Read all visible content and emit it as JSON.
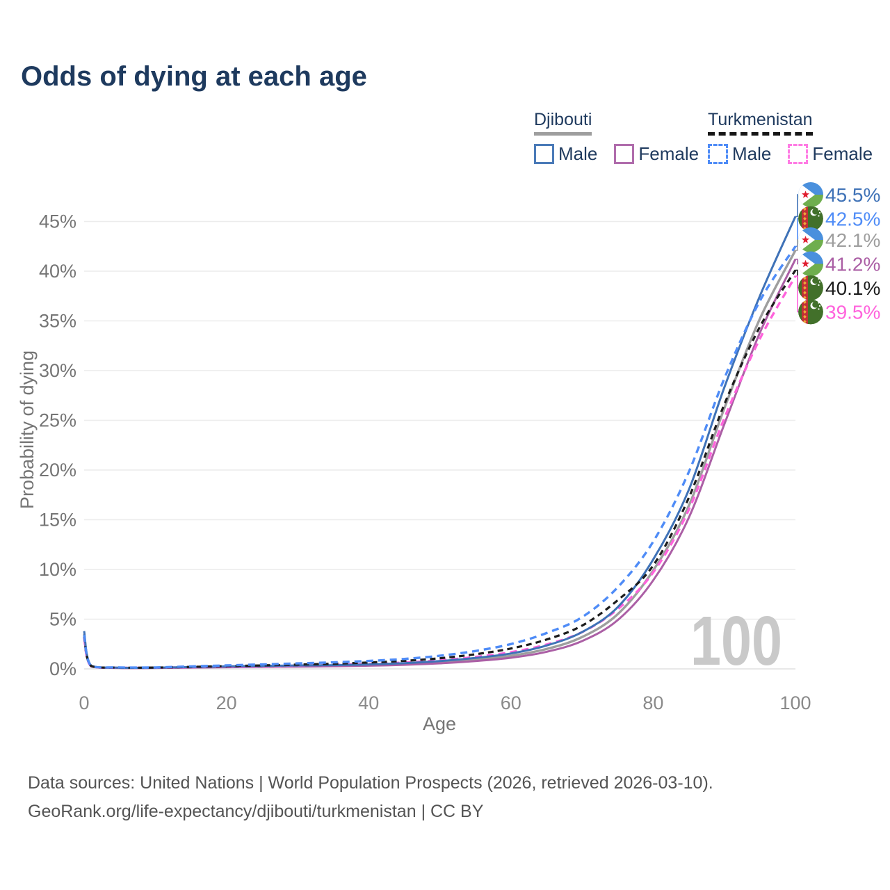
{
  "title": "Odds of dying at each age",
  "watermark_age": "100",
  "legend": {
    "groups": [
      {
        "country": "Djibouti",
        "line_style": "solid",
        "underline_color": "#9e9e9e",
        "items": [
          {
            "label": "Male",
            "color": "#4b7bb8"
          },
          {
            "label": "Female",
            "color": "#b06dac"
          }
        ]
      },
      {
        "country": "Turkmenistan",
        "line_style": "dashed",
        "underline_color": "#161616",
        "items": [
          {
            "label": "Male",
            "color": "#4f8cf7"
          },
          {
            "label": "Female",
            "color": "#ff7ce4"
          }
        ]
      }
    ]
  },
  "footer": {
    "line1": "Data sources: United Nations | World Population Prospects (2026, retrieved 2026-03-10).",
    "line2": "GeoRank.org/life-expectancy/djibouti/turkmenistan | CC BY"
  },
  "chart_data": {
    "type": "line",
    "title": "Odds of dying at each age",
    "xlabel": "Age",
    "ylabel": "Probability of dying",
    "xlim": [
      0,
      100
    ],
    "ylim": [
      0,
      47
    ],
    "grid": true,
    "legend_position": "top-right",
    "x_ticks": [
      0,
      20,
      40,
      60,
      80,
      100
    ],
    "y_ticks_percent": [
      0,
      5,
      10,
      15,
      20,
      25,
      30,
      35,
      40,
      45
    ],
    "ages": [
      0,
      1,
      5,
      10,
      15,
      20,
      25,
      30,
      35,
      40,
      45,
      50,
      55,
      60,
      65,
      70,
      75,
      80,
      85,
      90,
      95,
      100
    ],
    "series": [
      {
        "name": "Djibouti Male",
        "country": "Djibouti",
        "sex": "Male",
        "color": "#3f72b7",
        "dash": "",
        "width": 3,
        "end_value": 45.5,
        "end_label": "45.5%",
        "label_color": "#3f72b7",
        "flag": "djibouti",
        "values": [
          3.8,
          0.32,
          0.12,
          0.12,
          0.18,
          0.25,
          0.3,
          0.34,
          0.38,
          0.45,
          0.57,
          0.78,
          1.1,
          1.55,
          2.35,
          3.7,
          6.2,
          11.0,
          18.0,
          28.3,
          37.5,
          45.5
        ]
      },
      {
        "name": "Turkmenistan Male",
        "country": "Turkmenistan",
        "sex": "Male",
        "color": "#4f8cf7",
        "dash": "10 7",
        "width": 3.4,
        "end_value": 42.5,
        "end_label": "42.5%",
        "label_color": "#4f8cf7",
        "flag": "turkmenistan",
        "values": [
          3.4,
          0.3,
          0.15,
          0.15,
          0.25,
          0.35,
          0.45,
          0.55,
          0.66,
          0.8,
          1.0,
          1.32,
          1.8,
          2.5,
          3.6,
          5.2,
          8.2,
          12.8,
          19.8,
          29.2,
          37.0,
          42.5
        ]
      },
      {
        "name": "Djibouti Both sexes",
        "country": "Djibouti",
        "sex": "Both",
        "color": "#9e9e9e",
        "dash": "",
        "width": 3.4,
        "end_value": 42.1,
        "end_label": "42.1%",
        "label_color": "#9e9e9e",
        "flag": "djibouti",
        "values": [
          3.5,
          0.29,
          0.11,
          0.11,
          0.15,
          0.21,
          0.25,
          0.28,
          0.32,
          0.38,
          0.48,
          0.66,
          0.93,
          1.32,
          2.0,
          3.2,
          5.5,
          9.9,
          16.4,
          26.2,
          35.2,
          42.1
        ]
      },
      {
        "name": "Djibouti Female",
        "country": "Djibouti",
        "sex": "Female",
        "color": "#ab5fa5",
        "dash": "",
        "width": 3,
        "end_value": 41.2,
        "end_label": "41.2%",
        "label_color": "#ab5fa5",
        "flag": "djibouti",
        "values": [
          3.2,
          0.26,
          0.1,
          0.1,
          0.13,
          0.17,
          0.2,
          0.23,
          0.27,
          0.32,
          0.41,
          0.56,
          0.79,
          1.12,
          1.72,
          2.8,
          4.9,
          8.9,
          15.2,
          24.6,
          33.8,
          41.2
        ]
      },
      {
        "name": "Turkmenistan Both sexes",
        "country": "Turkmenistan",
        "sex": "Both",
        "color": "#1c1c1c",
        "dash": "8 6",
        "width": 3.2,
        "end_value": 40.1,
        "end_label": "40.1%",
        "label_color": "#1c1c1c",
        "flag": "turkmenistan",
        "values": [
          3.25,
          0.28,
          0.13,
          0.13,
          0.2,
          0.28,
          0.35,
          0.43,
          0.52,
          0.64,
          0.81,
          1.07,
          1.47,
          2.05,
          2.95,
          4.35,
          6.9,
          10.4,
          17.2,
          26.6,
          34.4,
          40.1
        ]
      },
      {
        "name": "Turkmenistan Female",
        "country": "Turkmenistan",
        "sex": "Female",
        "color": "#ff63dc",
        "dash": "10 7",
        "width": 3.4,
        "end_value": 39.5,
        "end_label": "39.5%",
        "label_color": "#ff63dc",
        "flag": "turkmenistan",
        "values": [
          3.1,
          0.26,
          0.12,
          0.12,
          0.17,
          0.22,
          0.27,
          0.33,
          0.4,
          0.5,
          0.64,
          0.86,
          1.2,
          1.68,
          2.45,
          3.7,
          6.0,
          9.7,
          16.0,
          25.2,
          33.2,
          39.5
        ]
      }
    ],
    "flag_colors": {
      "djibouti": {
        "blue": "#4a90dd",
        "green": "#6fae4e",
        "white": "#ffffff",
        "star_red": "#e01e2f"
      },
      "turkmenistan": {
        "green": "#42702a",
        "stripe_red": "#c03036",
        "gold": "#eda83a",
        "white": "#ffffff"
      }
    }
  }
}
